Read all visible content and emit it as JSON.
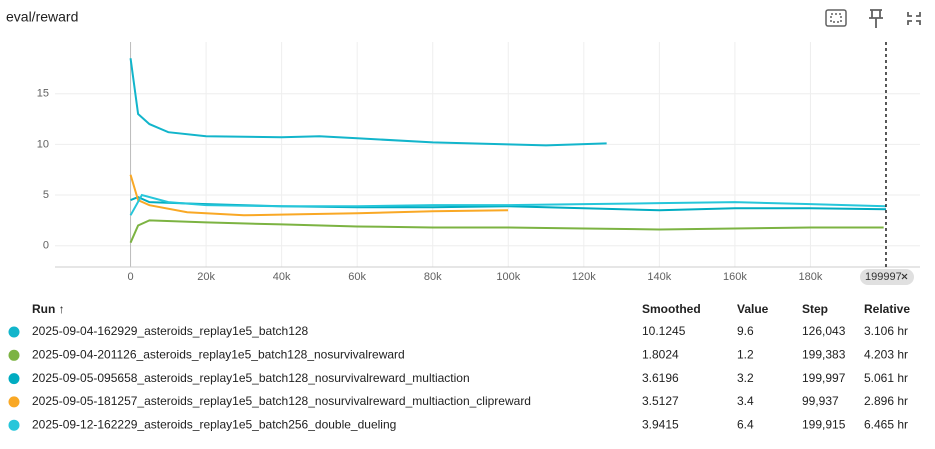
{
  "chart_data": {
    "type": "line",
    "title": "eval/reward",
    "xlim": [
      -20000,
      209000
    ],
    "ylim": [
      -2.1,
      20.1
    ],
    "xticks": [
      {
        "value": 0,
        "label": "0"
      },
      {
        "value": 20000,
        "label": "20k"
      },
      {
        "value": 40000,
        "label": "40k"
      },
      {
        "value": 60000,
        "label": "60k"
      },
      {
        "value": 80000,
        "label": "80k"
      },
      {
        "value": 100000,
        "label": "100k"
      },
      {
        "value": 120000,
        "label": "120k"
      },
      {
        "value": 140000,
        "label": "140k"
      },
      {
        "value": 160000,
        "label": "160k"
      },
      {
        "value": 180000,
        "label": "180k"
      }
    ],
    "yticks": [
      0,
      5,
      10,
      15
    ],
    "grid": true,
    "cursor": 199997,
    "series": [
      {
        "name": "2025-09-04-162929_asteroids_replay1e5_batch128",
        "color": "#12b5cb",
        "x": [
          0,
          2000,
          5000,
          10000,
          20000,
          40000,
          50000,
          60000,
          80000,
          100000,
          110000,
          126043
        ],
        "values": [
          18.5,
          13,
          12,
          11.2,
          10.8,
          10.7,
          10.8,
          10.6,
          10.2,
          10.0,
          9.9,
          10.1
        ]
      },
      {
        "name": "2025-09-04-201126_asteroids_replay1e5_batch128_nosurvivalreward",
        "color": "#7cb342",
        "x": [
          0,
          2000,
          5000,
          20000,
          40000,
          60000,
          80000,
          100000,
          120000,
          140000,
          160000,
          180000,
          199383
        ],
        "values": [
          0.3,
          2,
          2.5,
          2.3,
          2.1,
          1.9,
          1.8,
          1.8,
          1.7,
          1.6,
          1.7,
          1.8,
          1.8
        ]
      },
      {
        "name": "2025-09-05-095658_asteroids_replay1e5_batch128_nosurvivalreward_multiaction",
        "color": "#00acc1",
        "x": [
          0,
          2000,
          5000,
          20000,
          40000,
          60000,
          80000,
          100000,
          120000,
          140000,
          160000,
          180000,
          199997
        ],
        "values": [
          4.5,
          4.8,
          4.3,
          4.1,
          3.9,
          3.8,
          3.8,
          3.9,
          3.7,
          3.5,
          3.7,
          3.7,
          3.6
        ]
      },
      {
        "name": "2025-09-05-181257_asteroids_replay1e5_batch128_nosurvivalreward_multiaction_clipreward",
        "color": "#f9a825",
        "x": [
          0,
          2000,
          5000,
          15000,
          30000,
          45000,
          60000,
          80000,
          99937
        ],
        "values": [
          7,
          4.5,
          4,
          3.3,
          3.0,
          3.1,
          3.2,
          3.4,
          3.5
        ]
      },
      {
        "name": "2025-09-12-162229_asteroids_replay1e5_batch256_double_dueling",
        "color": "#26c6da",
        "x": [
          0,
          3000,
          10000,
          20000,
          40000,
          60000,
          80000,
          100000,
          120000,
          140000,
          160000,
          180000,
          199915
        ],
        "values": [
          3,
          5,
          4.3,
          4.0,
          3.9,
          3.9,
          4.0,
          4.0,
          4.1,
          4.2,
          4.3,
          4.1,
          3.9
        ]
      }
    ]
  },
  "table": {
    "columns": [
      "Run ↑",
      "Smoothed",
      "Value",
      "Step",
      "Relative"
    ],
    "rows": [
      {
        "smoothed": 10.1245,
        "value": 9.6,
        "step": {
          "value": 126043,
          "label": "126,043"
        },
        "relative": "3.106 hr"
      },
      {
        "smoothed": 1.8024,
        "value": 1.2,
        "step": {
          "value": 199383,
          "label": "199,383"
        },
        "relative": "4.203 hr"
      },
      {
        "smoothed": 3.6196,
        "value": 3.2,
        "step": {
          "value": 199997,
          "label": "199,997"
        },
        "relative": "5.061 hr"
      },
      {
        "smoothed": 3.5127,
        "value": 3.4,
        "step": {
          "value": 99937,
          "label": "99,937"
        },
        "relative": "2.896 hr"
      },
      {
        "smoothed": 3.9415,
        "value": 6.4,
        "step": {
          "value": 199915,
          "label": "199,915"
        },
        "relative": "6.465 hr"
      }
    ]
  }
}
